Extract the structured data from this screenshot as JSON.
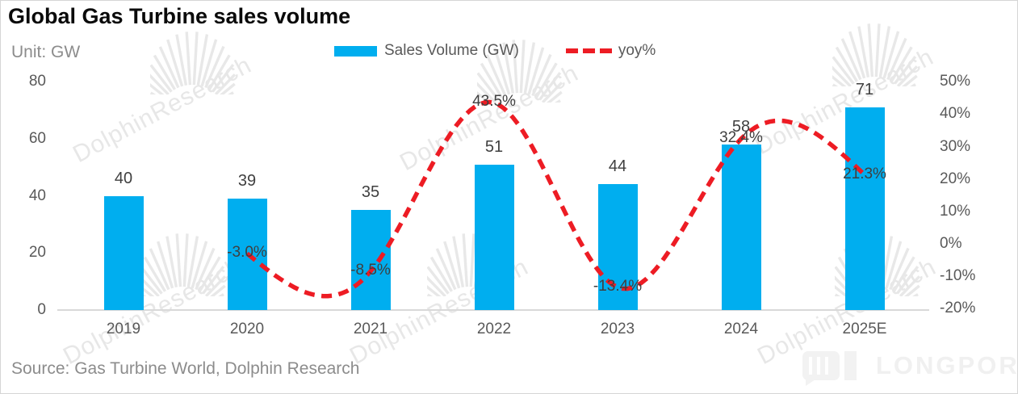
{
  "title": "Global Gas Turbine sales volume",
  "unit_label": "Unit: GW",
  "source": "Source: Gas Turbine World, Dolphin Research",
  "legend": {
    "bar_label": "Sales Volume (GW)",
    "line_label": "yoy%"
  },
  "watermark": {
    "text": "DolphinResearch",
    "brand": "LONGPORT"
  },
  "colors": {
    "bar": "#00AEEF",
    "line": "#ED1C24",
    "axis_line": "#D9D9D9",
    "tick_text": "#595959",
    "label_text": "#3F3F3F",
    "watermark": "#E8E8E8",
    "brand_watermark": "#F2F2F2"
  },
  "chart_data": {
    "type": "bar",
    "subtype": "combo bar + dashed line, dual axis",
    "title": "Global Gas Turbine sales volume",
    "categories": [
      "2019",
      "2020",
      "2021",
      "2022",
      "2023",
      "2024",
      "2025E"
    ],
    "series": [
      {
        "name": "Sales Volume (GW)",
        "type": "bar",
        "axis": "left",
        "values": [
          40,
          39,
          35,
          51,
          44,
          58,
          71
        ]
      },
      {
        "name": "yoy%",
        "type": "line",
        "axis": "right",
        "style": "dashed-smooth",
        "values": [
          null,
          -3.0,
          -8.5,
          43.5,
          -13.4,
          32.4,
          21.3
        ],
        "point_labels": [
          "",
          "-3.0%",
          "-8.5%",
          "43.5%",
          "-13.4%",
          "32.4%",
          "21.3%"
        ]
      }
    ],
    "left_axis": {
      "label": "Unit: GW",
      "ticks": [
        80,
        60,
        40,
        20,
        0
      ],
      "range": [
        0,
        80
      ]
    },
    "right_axis": {
      "ticks": [
        "50%",
        "40%",
        "30%",
        "20%",
        "10%",
        "0%",
        "-10%",
        "-20%"
      ],
      "range_pct": [
        -20,
        50
      ]
    },
    "legend_position": "top-center",
    "grid": false
  }
}
